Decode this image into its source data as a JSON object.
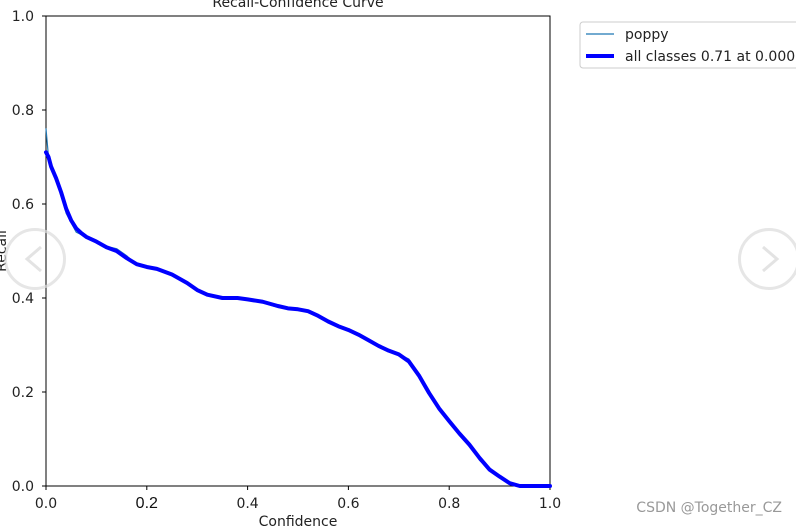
{
  "chart_data": {
    "type": "line",
    "title": "Recall-Confidence Curve",
    "xlabel": "Confidence",
    "ylabel": "Recall",
    "xlim": [
      0,
      1
    ],
    "ylim": [
      0,
      1
    ],
    "x_ticks": [
      "0.0",
      "0.2",
      "0.4",
      "0.6",
      "0.8",
      "1.0"
    ],
    "y_ticks": [
      "0.0",
      "0.2",
      "0.4",
      "0.6",
      "0.8",
      "1.0"
    ],
    "grid": false,
    "legend_placement": "outside-top-right",
    "series": [
      {
        "name": "poppy",
        "color": "#1f77b4",
        "x": [
          0.0,
          0.005,
          0.01,
          0.02,
          0.03,
          0.04,
          0.05,
          0.06,
          0.07,
          0.08,
          0.1,
          0.12,
          0.14,
          0.16,
          0.18,
          0.2,
          0.22,
          0.25,
          0.28,
          0.3,
          0.32,
          0.35,
          0.38,
          0.4,
          0.43,
          0.46,
          0.48,
          0.5,
          0.52,
          0.54,
          0.56,
          0.58,
          0.6,
          0.62,
          0.64,
          0.66,
          0.68,
          0.7,
          0.72,
          0.74,
          0.76,
          0.78,
          0.8,
          0.82,
          0.84,
          0.86,
          0.88,
          0.9,
          0.92,
          0.94,
          0.96,
          0.98,
          1.0
        ],
        "y": [
          0.76,
          0.7,
          0.68,
          0.65,
          0.62,
          0.58,
          0.56,
          0.54,
          0.535,
          0.53,
          0.52,
          0.51,
          0.505,
          0.49,
          0.47,
          0.465,
          0.46,
          0.45,
          0.43,
          0.415,
          0.405,
          0.4,
          0.4,
          0.395,
          0.39,
          0.38,
          0.377,
          0.375,
          0.37,
          0.36,
          0.35,
          0.34,
          0.33,
          0.32,
          0.31,
          0.3,
          0.29,
          0.28,
          0.27,
          0.235,
          0.2,
          0.165,
          0.135,
          0.11,
          0.09,
          0.055,
          0.035,
          0.02,
          0.005,
          0.0,
          0.0,
          0.0,
          0.0
        ]
      },
      {
        "name": "all classes 0.71 at 0.000",
        "color": "#0000ff",
        "x": [
          0.0,
          0.005,
          0.01,
          0.02,
          0.03,
          0.04,
          0.05,
          0.06,
          0.07,
          0.08,
          0.1,
          0.12,
          0.14,
          0.16,
          0.18,
          0.2,
          0.22,
          0.25,
          0.28,
          0.3,
          0.32,
          0.35,
          0.38,
          0.4,
          0.43,
          0.46,
          0.48,
          0.5,
          0.52,
          0.54,
          0.56,
          0.58,
          0.6,
          0.62,
          0.64,
          0.66,
          0.68,
          0.7,
          0.72,
          0.74,
          0.76,
          0.78,
          0.8,
          0.82,
          0.84,
          0.86,
          0.88,
          0.9,
          0.92,
          0.94,
          0.96,
          0.98,
          1.0
        ],
        "y": [
          0.71,
          0.7,
          0.68,
          0.655,
          0.625,
          0.59,
          0.565,
          0.548,
          0.538,
          0.53,
          0.52,
          0.508,
          0.5,
          0.485,
          0.472,
          0.466,
          0.462,
          0.45,
          0.432,
          0.417,
          0.407,
          0.4,
          0.4,
          0.397,
          0.392,
          0.383,
          0.378,
          0.376,
          0.372,
          0.362,
          0.35,
          0.34,
          0.332,
          0.322,
          0.31,
          0.298,
          0.288,
          0.28,
          0.265,
          0.235,
          0.198,
          0.165,
          0.138,
          0.112,
          0.088,
          0.06,
          0.035,
          0.02,
          0.006,
          0.0,
          0.0,
          0.0,
          0.0
        ]
      }
    ]
  },
  "watermark": "CSDN @Together_CZ",
  "nav": {
    "prev_icon": "chevron-left-icon",
    "next_icon": "chevron-right-icon"
  }
}
